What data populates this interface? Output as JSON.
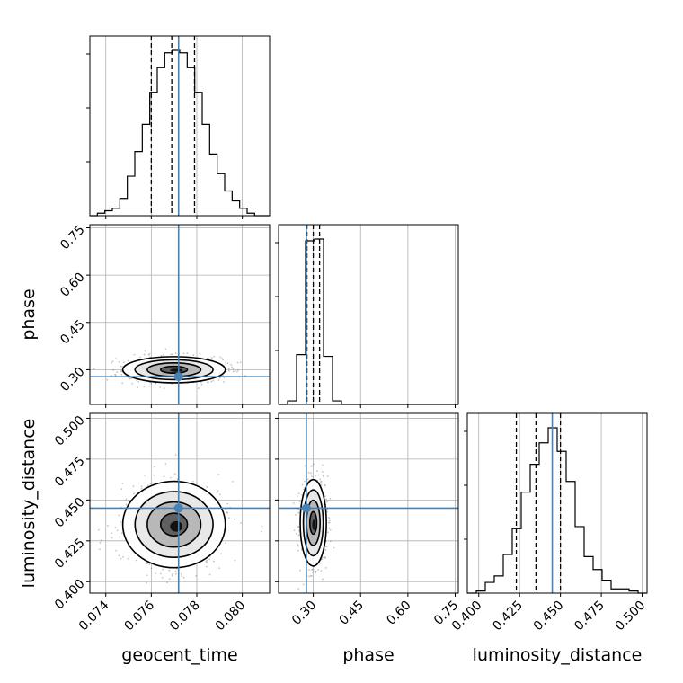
{
  "chart_data": {
    "type": "corner",
    "parameters": [
      "geocent_time",
      "phase",
      "luminosity_distance"
    ],
    "axis_labels": {
      "geocent_time": "geocent_time",
      "phase": "phase",
      "luminosity_distance": "luminosity_distance"
    },
    "ranges": {
      "geocent_time": [
        0.0733,
        0.0812
      ],
      "phase": [
        0.19,
        0.76
      ],
      "luminosity_distance": [
        0.393,
        0.503
      ]
    },
    "ticks": {
      "geocent_time": [
        "0.074",
        "0.076",
        "0.078",
        "0.080"
      ],
      "phase": [
        "0.30",
        "0.45",
        "0.60",
        "0.75"
      ],
      "luminosity_distance": [
        "0.400",
        "0.425",
        "0.450",
        "0.475",
        "0.500"
      ]
    },
    "truths": {
      "geocent_time": 0.0772,
      "phase": 0.278,
      "luminosity_distance": 0.445
    },
    "quantiles": {
      "geocent_time": [
        0.076,
        0.0769,
        0.0779
      ],
      "phase": [
        0.28,
        0.3,
        0.32
      ],
      "luminosity_distance": [
        0.423,
        0.435,
        0.45
      ]
    },
    "histograms": {
      "geocent_time": {
        "edges": [
          0.0733,
          0.0812
        ],
        "counts": [
          0,
          1,
          2,
          3,
          7,
          16,
          26,
          37,
          50,
          60,
          66,
          67,
          66,
          60,
          50,
          37,
          25,
          17,
          10,
          6,
          3,
          1,
          0,
          0
        ]
      },
      "phase": {
        "edges": [
          0.19,
          0.76
        ],
        "counts": [
          0,
          2,
          28,
          92,
          93,
          27,
          2,
          0,
          0,
          0,
          0,
          0,
          0,
          0,
          0,
          0,
          0,
          0,
          0,
          0
        ]
      },
      "luminosity_distance": {
        "edges": [
          0.393,
          0.503
        ],
        "counts": [
          0,
          1,
          5,
          8,
          18,
          30,
          47,
          60,
          70,
          77,
          66,
          52,
          31,
          17,
          11,
          6,
          2,
          2,
          1,
          0
        ]
      }
    },
    "joint": [
      {
        "x": "geocent_time",
        "y": "phase",
        "center": [
          0.077,
          0.3
        ],
        "spread": [
          0.00098,
          0.018
        ]
      },
      {
        "x": "geocent_time",
        "y": "luminosity_distance",
        "center": [
          0.077,
          0.435
        ],
        "spread": [
          0.00098,
          0.0115
        ]
      },
      {
        "x": "phase",
        "y": "luminosity_distance",
        "center": [
          0.3,
          0.436
        ],
        "spread": [
          0.018,
          0.0115
        ]
      }
    ],
    "colors": {
      "truth": "#4682b4",
      "hist": "#000000",
      "grid": "#b0b0b0"
    },
    "grid": true
  }
}
